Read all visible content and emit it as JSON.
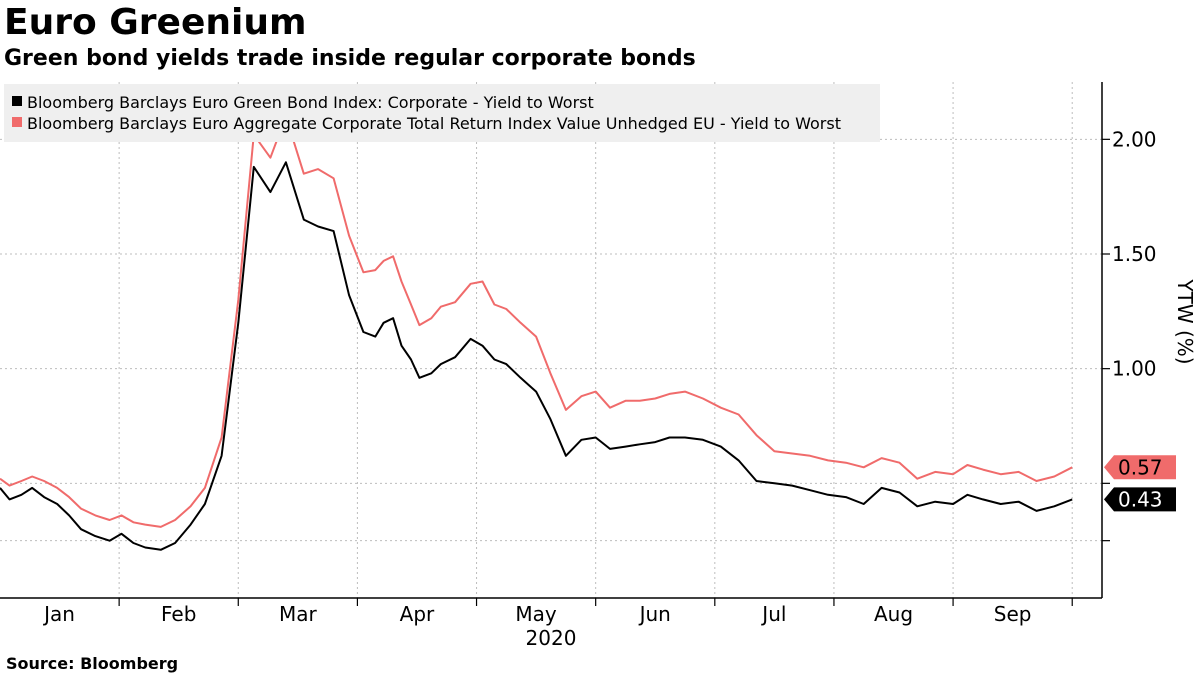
{
  "title": "Euro Greenium",
  "subtitle": "Green bond yields trade inside regular corporate bonds",
  "source": "Source: Bloomberg",
  "colors": {
    "green_index": "#000000",
    "aggregate_index": "#f06b6b",
    "grid": "#bdbdbd",
    "legend_bg": "#efefef"
  },
  "chart_data": {
    "type": "line",
    "title": "Euro Greenium",
    "ylabel": "YTW (%)",
    "xlabel": "2020",
    "ylim": [
      0.0,
      2.25
    ],
    "yticks": [
      0.25,
      0.5,
      1.0,
      1.5,
      2.0
    ],
    "ytick_labels": [
      "1.00",
      "1.50",
      "2.00"
    ],
    "ytick_label_values": [
      1.0,
      1.5,
      2.0
    ],
    "x_domain": [
      0,
      9.25
    ],
    "months": [
      "Jan",
      "Feb",
      "Mar",
      "Apr",
      "May",
      "Jun",
      "Jul",
      "Aug",
      "Sep"
    ],
    "year_label": "2020",
    "legend_location": "top-left",
    "series": [
      {
        "name": "Bloomberg Barclays Euro Green Bond Index: Corporate - Yield to Worst",
        "color": "#000000",
        "last_label": "0.43",
        "x": [
          0.0,
          0.08,
          0.18,
          0.27,
          0.37,
          0.48,
          0.58,
          0.68,
          0.8,
          0.92,
          1.02,
          1.12,
          1.22,
          1.35,
          1.47,
          1.6,
          1.72,
          1.86,
          2.0,
          2.13,
          2.27,
          2.4,
          2.55,
          2.67,
          2.8,
          2.93,
          3.05,
          3.15,
          3.22,
          3.3,
          3.37,
          3.45,
          3.52,
          3.62,
          3.7,
          3.82,
          3.95,
          4.05,
          4.15,
          4.25,
          4.37,
          4.5,
          4.62,
          4.75,
          4.88,
          5.0,
          5.12,
          5.25,
          5.37,
          5.5,
          5.62,
          5.75,
          5.9,
          6.05,
          6.2,
          6.35,
          6.5,
          6.65,
          6.8,
          6.95,
          7.1,
          7.25,
          7.4,
          7.55,
          7.7,
          7.85,
          8.0,
          8.12,
          8.25,
          8.4,
          8.55,
          8.7,
          8.85,
          9.0
        ],
        "values": [
          0.48,
          0.43,
          0.45,
          0.48,
          0.44,
          0.41,
          0.36,
          0.3,
          0.27,
          0.25,
          0.28,
          0.24,
          0.22,
          0.21,
          0.24,
          0.32,
          0.41,
          0.62,
          1.2,
          1.88,
          1.77,
          1.9,
          1.65,
          1.62,
          1.6,
          1.32,
          1.16,
          1.14,
          1.2,
          1.22,
          1.1,
          1.04,
          0.96,
          0.98,
          1.02,
          1.05,
          1.13,
          1.1,
          1.04,
          1.02,
          0.96,
          0.9,
          0.78,
          0.62,
          0.69,
          0.7,
          0.65,
          0.66,
          0.67,
          0.68,
          0.7,
          0.7,
          0.69,
          0.66,
          0.6,
          0.51,
          0.5,
          0.49,
          0.47,
          0.45,
          0.44,
          0.41,
          0.48,
          0.46,
          0.4,
          0.42,
          0.41,
          0.45,
          0.43,
          0.41,
          0.42,
          0.38,
          0.4,
          0.43
        ]
      },
      {
        "name": "Bloomberg Barclays Euro Aggregate Corporate Total Return Index Value Unhedged EU - Yield to Worst",
        "color": "#f06b6b",
        "last_label": "0.57",
        "x": [
          0.0,
          0.08,
          0.18,
          0.27,
          0.37,
          0.48,
          0.58,
          0.68,
          0.8,
          0.92,
          1.02,
          1.12,
          1.22,
          1.35,
          1.47,
          1.6,
          1.72,
          1.86,
          2.0,
          2.13,
          2.27,
          2.4,
          2.55,
          2.67,
          2.8,
          2.93,
          3.05,
          3.15,
          3.22,
          3.3,
          3.37,
          3.45,
          3.52,
          3.62,
          3.7,
          3.82,
          3.95,
          4.05,
          4.15,
          4.25,
          4.37,
          4.5,
          4.62,
          4.75,
          4.88,
          5.0,
          5.12,
          5.25,
          5.37,
          5.5,
          5.62,
          5.75,
          5.9,
          6.05,
          6.2,
          6.35,
          6.5,
          6.65,
          6.8,
          6.95,
          7.1,
          7.25,
          7.4,
          7.55,
          7.7,
          7.85,
          8.0,
          8.12,
          8.25,
          8.4,
          8.55,
          8.7,
          8.85,
          9.0
        ],
        "values": [
          0.52,
          0.49,
          0.51,
          0.53,
          0.51,
          0.48,
          0.44,
          0.39,
          0.36,
          0.34,
          0.36,
          0.33,
          0.32,
          0.31,
          0.34,
          0.4,
          0.48,
          0.7,
          1.3,
          2.02,
          1.92,
          2.1,
          1.85,
          1.87,
          1.83,
          1.58,
          1.42,
          1.43,
          1.47,
          1.49,
          1.38,
          1.28,
          1.19,
          1.22,
          1.27,
          1.29,
          1.37,
          1.38,
          1.28,
          1.26,
          1.2,
          1.14,
          0.98,
          0.82,
          0.88,
          0.9,
          0.83,
          0.86,
          0.86,
          0.87,
          0.89,
          0.9,
          0.87,
          0.83,
          0.8,
          0.71,
          0.64,
          0.63,
          0.62,
          0.6,
          0.59,
          0.57,
          0.61,
          0.59,
          0.52,
          0.55,
          0.54,
          0.58,
          0.56,
          0.54,
          0.55,
          0.51,
          0.53,
          0.57
        ]
      }
    ]
  }
}
